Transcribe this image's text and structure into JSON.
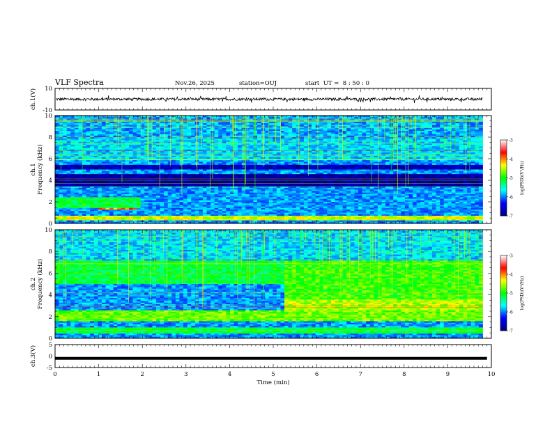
{
  "header": {
    "title": "VLF Spectra",
    "date": "Nov.26, 2025",
    "station": "station=OUJ",
    "start": "start  UT =  8 : 50 : 0"
  },
  "chart_data": {
    "type": "heatmap",
    "xlabel": "Time  (min)",
    "xlim": [
      0,
      10
    ],
    "xticks": [
      "0",
      "1",
      "2",
      "3",
      "4",
      "5",
      "6",
      "7",
      "8",
      "9",
      "10"
    ],
    "panels": [
      {
        "name": "ch1-waveform",
        "type": "line",
        "ylabel": "ch.1(V)",
        "ylim": [
          -10,
          10
        ],
        "yticks": [
          "10",
          "-10"
        ],
        "signal_level": 0,
        "noise_amplitude": 1.2
      },
      {
        "name": "ch1-spectrogram",
        "type": "heatmap",
        "ylabel_line1": "ch.1",
        "ylabel_line2": "Frequency  (kHz)",
        "ylim": [
          0,
          10
        ],
        "yticks": [
          "0",
          "2",
          "4",
          "6",
          "8",
          "10"
        ],
        "data_end_min": 9.8,
        "bands": [
          {
            "f": [
              0.3,
              0.7
            ],
            "level": 3.8
          },
          {
            "f": [
              1.3,
              1.7
            ],
            "t": [
              1.0,
              1.9
            ],
            "level": 4.5
          },
          {
            "f": [
              1.4,
              2.4
            ],
            "t": [
              0,
              2.0
            ],
            "level": 2.8
          },
          {
            "f": [
              3.4,
              4.6
            ],
            "level": 0.2
          },
          {
            "f": [
              5.0,
              5.4
            ],
            "level": 0.4
          },
          {
            "f": [
              5.8,
              7.8
            ],
            "level": 1.9
          },
          {
            "f": [
              7.8,
              10
            ],
            "level": 1.7
          }
        ]
      },
      {
        "name": "ch2-spectrogram",
        "type": "heatmap",
        "ylabel_line1": "ch.2",
        "ylabel_line2": "Frequency  (kHz)",
        "ylim": [
          0,
          10
        ],
        "yticks": [
          "0",
          "2",
          "4",
          "6",
          "8",
          "10"
        ],
        "data_end_min": 9.8,
        "bands": [
          {
            "f": [
              0.5,
              1.0
            ],
            "level": 2.8
          },
          {
            "f": [
              1.6,
              2.5
            ],
            "level": 3.4
          },
          {
            "f": [
              2.6,
              3.6
            ],
            "t": [
              5.3,
              9.8
            ],
            "level": 3.7
          },
          {
            "f": [
              3.6,
              7.2
            ],
            "t": [
              5.3,
              9.8
            ],
            "level": 3.2
          },
          {
            "f": [
              5.0,
              7.2
            ],
            "t": [
              0,
              5.3
            ],
            "level": 2.8
          },
          {
            "f": [
              7.2,
              10
            ],
            "level": 1.9
          }
        ]
      },
      {
        "name": "ch3-waveform",
        "type": "line",
        "ylabel": "ch.3(V)",
        "ylim": [
          -5,
          5
        ],
        "yticks": [
          "5",
          "0",
          "-5"
        ],
        "signal_level": -1,
        "noise_amplitude": 0
      }
    ],
    "colorbars": [
      {
        "label": "log(PSD)(V²/Hz)",
        "ticks": [
          "-3",
          "-4",
          "-5",
          "-6",
          "-7"
        ],
        "range": [
          -7,
          -3
        ]
      },
      {
        "label": "log(PSD)(V²/Hz)",
        "ticks": [
          "-3",
          "-4",
          "-5",
          "-6",
          "-7"
        ],
        "range": [
          -7,
          -3
        ]
      }
    ],
    "colormap": [
      "#000080",
      "#0000ff",
      "#00ffff",
      "#00ff00",
      "#ffff00",
      "#ff0000",
      "#ffffff"
    ]
  }
}
